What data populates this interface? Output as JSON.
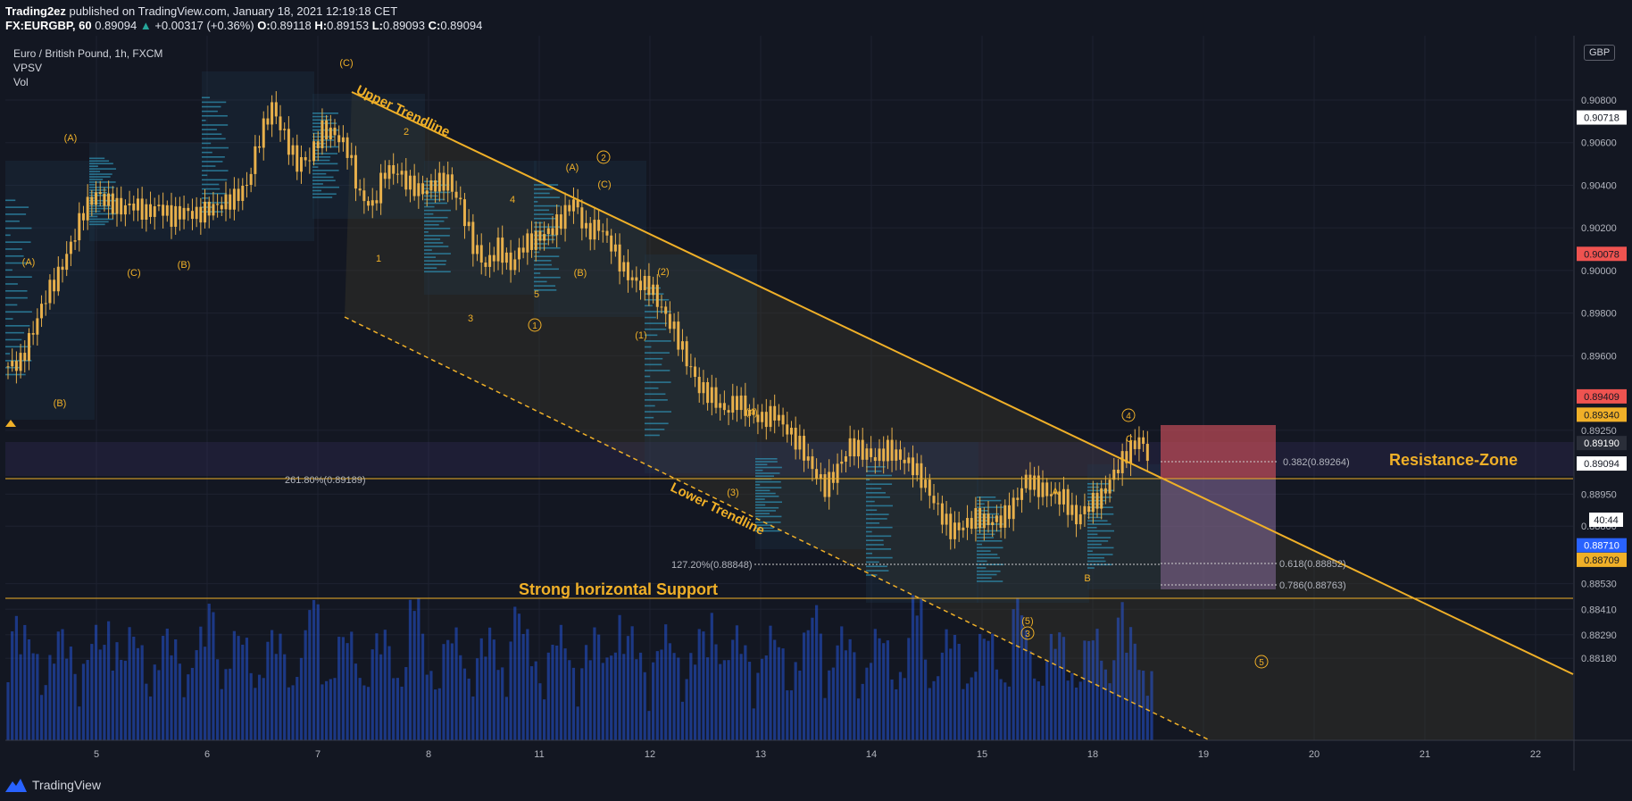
{
  "header": {
    "line1": {
      "author": "Trading2ez",
      "rest": "published on TradingView.com, January 18, 2021 12:19:18 CET"
    },
    "line2": {
      "symbol": "FX:EURGBP, 60",
      "last": "0.89094",
      "change": "+0.00317 (+0.36%)",
      "o_label": "O:",
      "o": "0.89118",
      "h_label": "H:",
      "h": "0.89153",
      "l_label": "L:",
      "l": "0.89093",
      "c_label": "C:",
      "c": "0.89094"
    }
  },
  "legend": {
    "title": "Euro / British Pound, 1h, FXCM",
    "ind1": "VPSV",
    "ind2": "Vol"
  },
  "currency_button": "GBP",
  "footer": {
    "brand": "TradingView"
  },
  "colors": {
    "background": "#131722",
    "accent": "#f0b028",
    "up": "#26a69a",
    "bar": "#e8b04b",
    "volume": "#2962ff",
    "red_label": "#ef5350"
  },
  "chart_data": {
    "type": "candlestick",
    "symbol": "EURGBP",
    "timeframe": "1h",
    "x_ticks": [
      "5",
      "6",
      "7",
      "8",
      "11",
      "12",
      "13",
      "14",
      "15",
      "18",
      "19",
      "20",
      "21",
      "22"
    ],
    "ylim": [
      0.8812,
      0.9098
    ],
    "y_ticks": [
      "0.90800",
      "0.90600",
      "0.90400",
      "0.90200",
      "0.90000",
      "0.89800",
      "0.89600",
      "0.89250",
      "0.88950",
      "0.88800",
      "0.88530",
      "0.88410",
      "0.88290",
      "0.88180"
    ],
    "y_tick_values": [
      0.908,
      0.906,
      0.904,
      0.902,
      0.9,
      0.898,
      0.896,
      0.8925,
      0.8895,
      0.888,
      0.8853,
      0.8841,
      0.8829,
      0.8818
    ],
    "price_labels": [
      {
        "value": 0.90718,
        "text": "0.90718",
        "bg": "#ffffff",
        "fg": "#131722"
      },
      {
        "value": 0.90078,
        "text": "0.90078",
        "bg": "#ef5350",
        "fg": "#131722"
      },
      {
        "value": 0.89409,
        "text": "0.89409",
        "bg": "#ef5350",
        "fg": "#131722"
      },
      {
        "value": 0.8934,
        "text": "0.89340",
        "bg": "#f0b028",
        "fg": "#131722"
      },
      {
        "value": 0.8919,
        "text": "0.89190",
        "bg": "#2a2e39",
        "fg": "#ffffff"
      },
      {
        "value": 0.89094,
        "text": "0.89094",
        "bg": "#ffffff",
        "fg": "#131722"
      },
      {
        "value": 0.8871,
        "text": "0.88710",
        "bg": "#2962ff",
        "fg": "#ffffff"
      },
      {
        "value": 0.88709,
        "text": "0.88709",
        "bg": "#f0b028",
        "fg": "#131722"
      }
    ],
    "countdown": "40:44",
    "price_path": [
      [
        0,
        0.8955
      ],
      [
        3,
        0.8957
      ],
      [
        6,
        0.8972
      ],
      [
        9,
        0.8988
      ],
      [
        12,
        0.8998
      ],
      [
        15,
        0.9012
      ],
      [
        18,
        0.9028
      ],
      [
        21,
        0.9036
      ],
      [
        24,
        0.9032
      ],
      [
        27,
        0.9029
      ],
      [
        30,
        0.9031
      ],
      [
        33,
        0.9027
      ],
      [
        36,
        0.903
      ],
      [
        39,
        0.9025
      ],
      [
        42,
        0.9028
      ],
      [
        45,
        0.9026
      ],
      [
        48,
        0.9029
      ],
      [
        51,
        0.9031
      ],
      [
        54,
        0.9034
      ],
      [
        57,
        0.904
      ],
      [
        60,
        0.9062
      ],
      [
        63,
        0.9077
      ],
      [
        66,
        0.9063
      ],
      [
        69,
        0.905
      ],
      [
        72,
        0.9053
      ],
      [
        75,
        0.9066
      ],
      [
        78,
        0.9064
      ],
      [
        81,
        0.9057
      ],
      [
        84,
        0.9035
      ],
      [
        87,
        0.903
      ],
      [
        90,
        0.9047
      ],
      [
        93,
        0.9046
      ],
      [
        96,
        0.904
      ],
      [
        99,
        0.9037
      ],
      [
        102,
        0.9041
      ],
      [
        105,
        0.9042
      ],
      [
        108,
        0.9031
      ],
      [
        111,
        0.9012
      ],
      [
        114,
        0.9002
      ],
      [
        117,
        0.9011
      ],
      [
        120,
        0.9002
      ],
      [
        123,
        0.9012
      ],
      [
        126,
        0.9015
      ],
      [
        129,
        0.9018
      ],
      [
        132,
        0.9024
      ],
      [
        135,
        0.9033
      ],
      [
        138,
        0.9018
      ],
      [
        141,
        0.9021
      ],
      [
        144,
        0.9012
      ],
      [
        147,
        0.9
      ],
      [
        150,
        0.8994
      ],
      [
        153,
        0.8993
      ],
      [
        156,
        0.8982
      ],
      [
        159,
        0.8972
      ],
      [
        162,
        0.8958
      ],
      [
        165,
        0.8945
      ],
      [
        168,
        0.8941
      ],
      [
        171,
        0.8934
      ],
      [
        174,
        0.8939
      ],
      [
        177,
        0.8933
      ],
      [
        180,
        0.893
      ],
      [
        183,
        0.8933
      ],
      [
        186,
        0.8925
      ],
      [
        189,
        0.8918
      ],
      [
        192,
        0.8907
      ],
      [
        195,
        0.8898
      ],
      [
        198,
        0.8907
      ],
      [
        201,
        0.8918
      ],
      [
        204,
        0.8915
      ],
      [
        207,
        0.8912
      ],
      [
        210,
        0.8916
      ],
      [
        213,
        0.8912
      ],
      [
        216,
        0.8908
      ],
      [
        219,
        0.8899
      ],
      [
        222,
        0.8888
      ],
      [
        225,
        0.8878
      ],
      [
        228,
        0.888
      ],
      [
        231,
        0.8884
      ],
      [
        234,
        0.8882
      ],
      [
        237,
        0.8883
      ],
      [
        240,
        0.889
      ],
      [
        243,
        0.8902
      ],
      [
        246,
        0.8898
      ],
      [
        249,
        0.8895
      ],
      [
        252,
        0.8893
      ],
      [
        255,
        0.8883
      ],
      [
        258,
        0.889
      ],
      [
        261,
        0.8894
      ],
      [
        264,
        0.8905
      ],
      [
        267,
        0.8914
      ],
      [
        270,
        0.8921
      ],
      [
        273,
        0.891
      ]
    ],
    "path_x_range": [
      0,
      273
    ],
    "annotations": {
      "upper_trendline": "Upper Trendline",
      "lower_trendline": "Lower Trendline",
      "support": "Strong horizontal Support",
      "resistance": "Resistance-Zone",
      "fib_2618": "261.80%(0.89189)",
      "fib_1272": "127.20%(0.88848)",
      "fib_0382": "0.382(0.89264)",
      "fib_0618": "0.618(0.88852)",
      "fib_0786": "0.786(0.88763)"
    },
    "wave_labels": [
      {
        "text": "(C)",
        "x": 388,
        "y": 74
      },
      {
        "text": "(A)",
        "x": 79,
        "y": 158
      },
      {
        "text": "(A)",
        "x": 32,
        "y": 297
      },
      {
        "text": "(C)",
        "x": 150,
        "y": 309
      },
      {
        "text": "(B)",
        "x": 206,
        "y": 300
      },
      {
        "text": "(B)",
        "x": 67,
        "y": 455
      },
      {
        "text": "2",
        "x": 455,
        "y": 151
      },
      {
        "text": "1",
        "x": 424,
        "y": 293
      },
      {
        "text": "4",
        "x": 574,
        "y": 227
      },
      {
        "text": "3",
        "x": 527,
        "y": 360
      },
      {
        "text": "5",
        "x": 601,
        "y": 333
      },
      {
        "text": "(A)",
        "x": 641,
        "y": 191
      },
      {
        "text": "(C)",
        "x": 677,
        "y": 210
      },
      {
        "text": "(B)",
        "x": 650,
        "y": 309
      },
      {
        "text": "(2)",
        "x": 743,
        "y": 308
      },
      {
        "text": "(1)",
        "x": 718,
        "y": 379
      },
      {
        "text": "(4)",
        "x": 842,
        "y": 465
      },
      {
        "text": "(3)",
        "x": 821,
        "y": 555
      },
      {
        "text": "A",
        "x": 1182,
        "y": 554
      },
      {
        "text": "C",
        "x": 1265,
        "y": 495
      },
      {
        "text": "B",
        "x": 1218,
        "y": 651
      },
      {
        "text": "(5)",
        "x": 1151,
        "y": 699
      }
    ],
    "circled_labels": [
      {
        "text": "2",
        "x": 676,
        "y": 180
      },
      {
        "text": "1",
        "x": 599,
        "y": 368
      },
      {
        "text": "4",
        "x": 1264,
        "y": 469
      },
      {
        "text": "3",
        "x": 1151,
        "y": 713
      },
      {
        "text": "5",
        "x": 1413,
        "y": 745
      }
    ]
  }
}
